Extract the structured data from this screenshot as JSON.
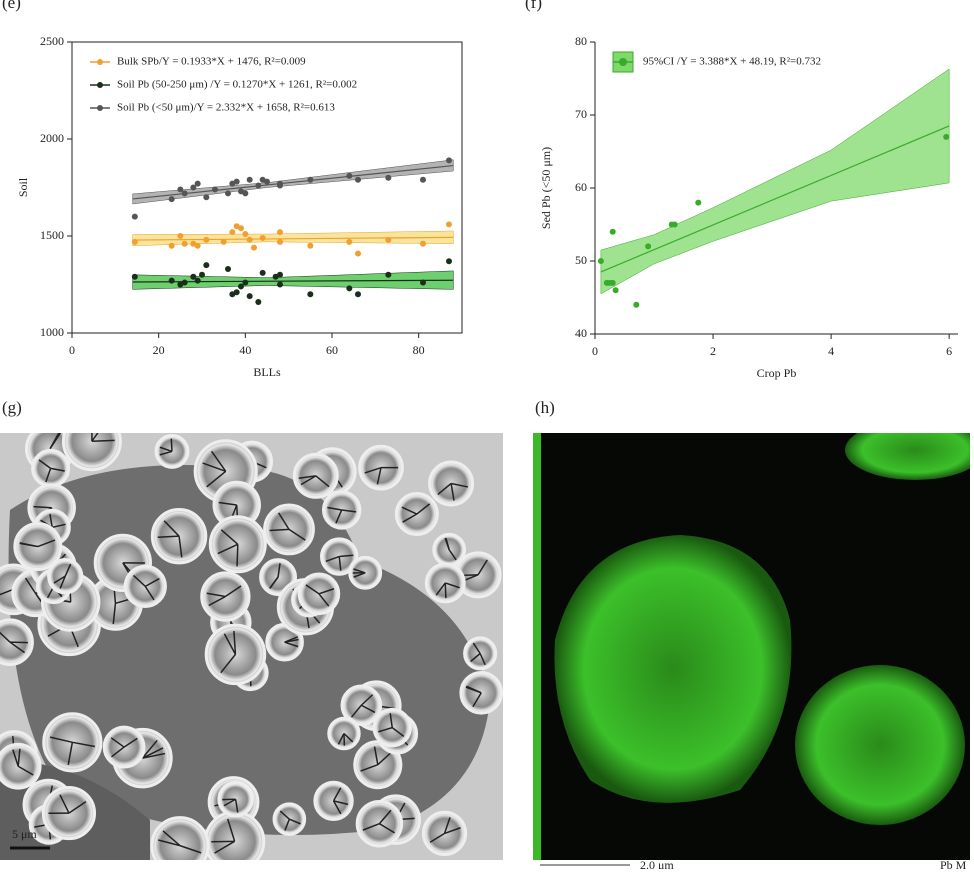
{
  "chart_data": [
    {
      "type": "scatter",
      "panel": "(e)",
      "xlabel": "BLLs",
      "ylabel": "Soil",
      "xlim": [
        0,
        90
      ],
      "xticks": [
        0,
        20,
        40,
        60,
        80
      ],
      "ylim": [
        1000,
        2500
      ],
      "yticks": [
        1000,
        1500,
        2000,
        2500
      ],
      "legend": "top-left",
      "series": [
        {
          "name": "Bulk SPb/Y = 0.1933*X + 1476, R²=0.009",
          "color": "#f0a030",
          "band_color": "#f6dc7a",
          "x": [
            14.5,
            23,
            25,
            26,
            28,
            29,
            31,
            35,
            37,
            38,
            39,
            40,
            41,
            42,
            44,
            48,
            48,
            55,
            64,
            66,
            73,
            81,
            87
          ],
          "y": [
            1470,
            1450,
            1500,
            1460,
            1460,
            1450,
            1480,
            1470,
            1520,
            1550,
            1540,
            1510,
            1480,
            1440,
            1490,
            1470,
            1520,
            1450,
            1470,
            1410,
            1480,
            1460,
            1560
          ],
          "fit": {
            "x": [
              14,
              88
            ],
            "y": [
              1479,
              1493
            ]
          },
          "band": {
            "x": [
              14,
              45,
              88
            ],
            "lower": [
              1450,
              1470,
              1460
            ],
            "upper": [
              1508,
              1510,
              1526
            ]
          }
        },
        {
          "name": "Soil Pb (50-250 μm) /Y = 0.1270*X + 1261, R²=0.002",
          "color": "#1b2e1b",
          "band_color": "#3cbf3c",
          "x": [
            14.5,
            23,
            25,
            26,
            28,
            29,
            30,
            31,
            36,
            37,
            38,
            39,
            40,
            41,
            43,
            44,
            47,
            48,
            48,
            55,
            64,
            66,
            73,
            81,
            87
          ],
          "y": [
            1290,
            1270,
            1250,
            1260,
            1290,
            1270,
            1300,
            1350,
            1330,
            1200,
            1210,
            1240,
            1260,
            1190,
            1160,
            1310,
            1290,
            1300,
            1250,
            1200,
            1230,
            1200,
            1300,
            1260,
            1370
          ],
          "fit": {
            "x": [
              14,
              88
            ],
            "y": [
              1263,
              1272
            ]
          },
          "band": {
            "x": [
              14,
              45,
              88
            ],
            "lower": [
              1225,
              1245,
              1225
            ],
            "upper": [
              1300,
              1285,
              1320
            ]
          }
        },
        {
          "name": "Soil Pb (<50 μm)/Y = 2.332*X + 1658, R²=0.613",
          "color": "#555555",
          "band_color": "#9a9a9a",
          "x": [
            14.5,
            23,
            25,
            26,
            28,
            29,
            31,
            33,
            36,
            37,
            38,
            39,
            40,
            41,
            43,
            44,
            45,
            48,
            48,
            55,
            64,
            66,
            73,
            81,
            87
          ],
          "y": [
            1600,
            1690,
            1740,
            1720,
            1750,
            1770,
            1700,
            1740,
            1720,
            1770,
            1780,
            1730,
            1720,
            1790,
            1760,
            1790,
            1780,
            1770,
            1760,
            1790,
            1810,
            1790,
            1800,
            1790,
            1890
          ],
          "fit": {
            "x": [
              14,
              88
            ],
            "y": [
              1691,
              1863
            ]
          },
          "band": {
            "x": [
              14,
              45,
              88
            ],
            "lower": [
              1665,
              1750,
              1835
            ],
            "upper": [
              1717,
              1775,
              1893
            ]
          }
        }
      ]
    },
    {
      "type": "scatter",
      "panel": "(f)",
      "xlabel": "Crop Pb",
      "ylabel": "Sed Pb (<50 μm)",
      "xlim": [
        0,
        6.15
      ],
      "xticks": [
        0,
        2,
        4,
        6
      ],
      "ylim": [
        40,
        80
      ],
      "yticks": [
        40,
        50,
        60,
        70,
        80
      ],
      "legend": "top-left",
      "series": [
        {
          "name": "95%CI /Y = 3.388*X + 48.19, R²=0.732",
          "color": "#3aaa2a",
          "band_color": "#7fd86a",
          "x": [
            0.1,
            0.2,
            0.25,
            0.3,
            0.3,
            0.35,
            0.7,
            0.9,
            1.3,
            1.35,
            1.75,
            5.95
          ],
          "y": [
            50,
            47,
            47,
            54,
            47,
            46,
            44,
            52,
            55,
            55,
            58,
            67
          ],
          "fit": {
            "x": [
              0.1,
              6
            ],
            "y": [
              48.5,
              68.5
            ]
          },
          "band": {
            "x": [
              0.1,
              1,
              2,
              4,
              6
            ],
            "lower": [
              45.5,
              49.6,
              52.7,
              58.2,
              60.7
            ],
            "upper": [
              51.5,
              53.6,
              57.3,
              65.2,
              76.3
            ]
          }
        }
      ]
    }
  ],
  "images": [
    {
      "panel": "(g)",
      "scale_bar": "5 μm"
    },
    {
      "panel": "(h)",
      "scale_bar": "2.0 μm",
      "channel": "Pb M"
    }
  ]
}
